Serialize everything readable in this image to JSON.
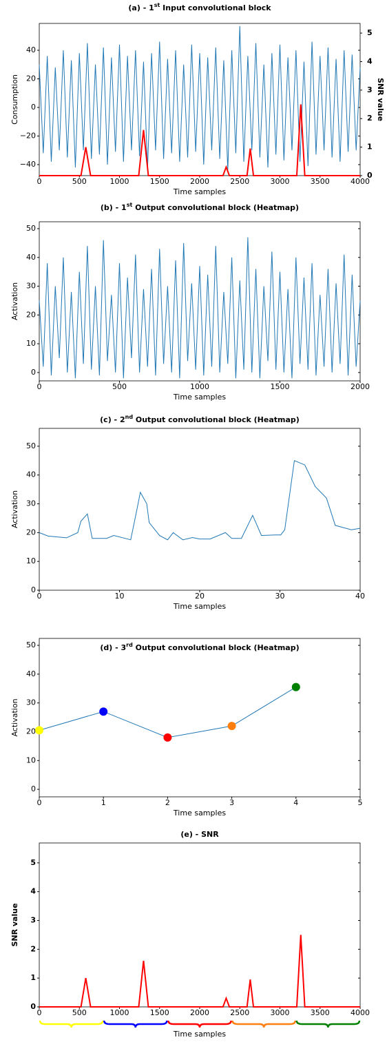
{
  "chart_data": [
    {
      "type": "line",
      "title": [
        "(a) - 1",
        "st",
        " Input convolutional block"
      ],
      "xlabel": "Time samples",
      "ylabel": "Consumption",
      "y2label": "SNR value",
      "y2_color": "#ff0000",
      "xlim": [
        0,
        4000
      ],
      "xticks": [
        0,
        500,
        1000,
        1500,
        2000,
        2500,
        3000,
        3500,
        4000
      ],
      "ylim": [
        -47.7,
        58.8
      ],
      "yticks": [
        {
          "value": -40,
          "label": "−40"
        },
        {
          "value": -20,
          "label": "−20"
        },
        0,
        20,
        40
      ],
      "y2lim": [
        0,
        5.34
      ],
      "y2ticks": [
        0,
        1,
        2,
        3,
        4,
        5
      ],
      "series": [
        {
          "color": "#1f77b4",
          "x": [
            0,
            50,
            100,
            150,
            200,
            250,
            300,
            350,
            400,
            450,
            500,
            550,
            600,
            650,
            700,
            750,
            800,
            850,
            900,
            950,
            1000,
            1050,
            1100,
            1150,
            1200,
            1250,
            1300,
            1350,
            1400,
            1450,
            1500,
            1550,
            1600,
            1650,
            1700,
            1750,
            1800,
            1850,
            1900,
            1950,
            2000,
            2050,
            2100,
            2150,
            2200,
            2250,
            2300,
            2350,
            2400,
            2450,
            2500,
            2550,
            2600,
            2650,
            2700,
            2750,
            2800,
            2850,
            2900,
            2950,
            3000,
            3050,
            3100,
            3150,
            3200,
            3250,
            3300,
            3350,
            3400,
            3450,
            3500,
            3550,
            3600,
            3650,
            3700,
            3750,
            3800,
            3850,
            3900,
            3950,
            4000
          ],
          "values": [
            30,
            -32,
            36,
            -38,
            28,
            -30,
            40,
            -35,
            33,
            -42,
            38,
            -30,
            45,
            -36,
            30,
            -33,
            42,
            -40,
            35,
            -31,
            44,
            -38,
            36,
            -30,
            40,
            -34,
            32,
            -43,
            38,
            -30,
            46,
            -36,
            34,
            -32,
            40,
            -38,
            30,
            -35,
            44,
            -31,
            38,
            -40,
            35,
            -30,
            42,
            -36,
            33,
            -44,
            40,
            -32,
            57,
            -38,
            36,
            -30,
            45,
            -35,
            30,
            -42,
            38,
            -33,
            44,
            -37,
            35,
            -30,
            40,
            -38,
            32,
            -41,
            46,
            -33,
            36,
            -30,
            42,
            -35,
            34,
            -38,
            40,
            -31,
            37,
            -30,
            28
          ]
        },
        {
          "color": "#ff0000",
          "axis": "y2",
          "x": [
            0,
            520,
            580,
            640,
            1240,
            1300,
            1360,
            2290,
            2330,
            2370,
            2590,
            2630,
            2670,
            3210,
            3260,
            3310,
            4000
          ],
          "values": [
            0,
            0,
            1.0,
            0,
            0,
            1.6,
            0,
            0,
            0.3,
            0,
            0,
            0.95,
            0,
            0,
            2.5,
            0,
            0
          ]
        }
      ]
    },
    {
      "type": "line",
      "title": [
        "(b) - 1",
        "st",
        " Output convolutional block (Heatmap)"
      ],
      "xlabel": "Time samples",
      "ylabel": "Activation",
      "xlim": [
        0,
        2000
      ],
      "xticks": [
        0,
        500,
        1000,
        1500,
        2000
      ],
      "ylim": [
        -2.9,
        52.4
      ],
      "yticks": [
        0,
        10,
        20,
        30,
        40,
        50
      ],
      "series": [
        {
          "color": "#1f77b4",
          "x": [
            0,
            25,
            50,
            75,
            100,
            125,
            150,
            175,
            200,
            225,
            250,
            275,
            300,
            325,
            350,
            375,
            400,
            425,
            450,
            475,
            500,
            525,
            550,
            575,
            600,
            625,
            650,
            675,
            700,
            725,
            750,
            775,
            800,
            825,
            850,
            875,
            900,
            925,
            950,
            975,
            1000,
            1025,
            1050,
            1075,
            1100,
            1125,
            1150,
            1175,
            1200,
            1225,
            1250,
            1275,
            1300,
            1325,
            1350,
            1375,
            1400,
            1425,
            1450,
            1475,
            1500,
            1525,
            1550,
            1575,
            1600,
            1625,
            1650,
            1675,
            1700,
            1725,
            1750,
            1775,
            1800,
            1825,
            1850,
            1875,
            1900,
            1925,
            1950,
            1975,
            2000
          ],
          "values": [
            25,
            2,
            38,
            -1,
            30,
            5,
            40,
            0,
            28,
            -2,
            35,
            3,
            44,
            1,
            30,
            -1,
            46,
            4,
            27,
            0,
            38,
            -2,
            33,
            5,
            41,
            0,
            29,
            2,
            36,
            -1,
            43,
            3,
            30,
            0,
            39,
            -2,
            45,
            4,
            31,
            1,
            37,
            -1,
            34,
            2,
            44,
            0,
            28,
            3,
            40,
            -2,
            32,
            1,
            47,
            0,
            36,
            -2,
            30,
            4,
            42,
            1,
            35,
            0,
            29,
            -2,
            40,
            3,
            33,
            1,
            38,
            -1,
            27,
            2,
            36,
            0,
            31,
            3,
            41,
            -1,
            34,
            2,
            25
          ]
        }
      ]
    },
    {
      "type": "line",
      "title": [
        "(c) - 2",
        "nd",
        " Output convolutional block (Heatmap)"
      ],
      "xlabel": "Time samples",
      "ylabel": "Activation",
      "xlim": [
        0,
        40
      ],
      "xticks": [
        0,
        10,
        20,
        30,
        40
      ],
      "ylim": [
        0,
        56.2
      ],
      "yticks": [
        0,
        10,
        20,
        30,
        40,
        50
      ],
      "series": [
        {
          "color": "#1f77b4",
          "x": [
            0,
            1.1,
            3.4,
            4.8,
            5.2,
            6,
            6.6,
            8.4,
            9.3,
            11.4,
            12.1,
            12.6,
            13.4,
            13.7,
            15,
            16,
            16.7,
            17.9,
            19.1,
            20,
            21.3,
            23.2,
            24,
            25.2,
            26.6,
            27.7,
            29.4,
            30.1,
            30.6,
            31.2,
            31.8,
            33.1,
            34.4,
            35.8,
            36.9,
            38.9,
            40
          ],
          "values": [
            20,
            18.8,
            18.2,
            20,
            24,
            26.5,
            18,
            18,
            19,
            17.5,
            27,
            34,
            30,
            23.5,
            19,
            17.5,
            20,
            17.5,
            18.3,
            17.8,
            17.8,
            20,
            18,
            18,
            26,
            19,
            19.2,
            19.2,
            21,
            33,
            45,
            43.5,
            36,
            32,
            22.5,
            21,
            21.5
          ]
        }
      ]
    },
    {
      "type": "line",
      "title": [
        "(d) - 3",
        "rd",
        " Output convolutional block (Heatmap)"
      ],
      "xlabel": "Time samples",
      "ylabel": "Activation",
      "xlim": [
        0,
        5
      ],
      "xticks": [
        0,
        1,
        2,
        3,
        4,
        5
      ],
      "ylim": [
        -2.6,
        52.4
      ],
      "yticks": [
        0,
        10,
        20,
        30,
        40,
        50
      ],
      "point_colors": [
        "#ffff00",
        "#0000ff",
        "#ff0000",
        "#ff7f0e",
        "#008000"
      ],
      "series": [
        {
          "color": "#1f77b4",
          "x": [
            0,
            1,
            2,
            3,
            4
          ],
          "values": [
            20.5,
            27,
            18,
            22,
            35.5
          ]
        }
      ]
    },
    {
      "type": "line",
      "title": [
        "(e) - SNR"
      ],
      "xlabel": "Time samples",
      "ylabel": "SNR value",
      "ylabel_color": "#ff0000",
      "xlim": [
        0,
        4000
      ],
      "xticks": [
        0,
        500,
        1000,
        1500,
        2000,
        2500,
        3000,
        3500,
        4000
      ],
      "ylim": [
        0,
        5.69
      ],
      "yticks": [
        0,
        1,
        2,
        3,
        4,
        5
      ],
      "series": [
        {
          "color": "#ff0000",
          "x": [
            0,
            520,
            580,
            640,
            1240,
            1300,
            1360,
            2290,
            2330,
            2370,
            2590,
            2630,
            2670,
            3210,
            3260,
            3310,
            4000
          ],
          "values": [
            0,
            0,
            1.0,
            0,
            0,
            1.6,
            0,
            0,
            0.3,
            0,
            0,
            0.95,
            0,
            0,
            2.5,
            0,
            0
          ]
        }
      ]
    }
  ]
}
